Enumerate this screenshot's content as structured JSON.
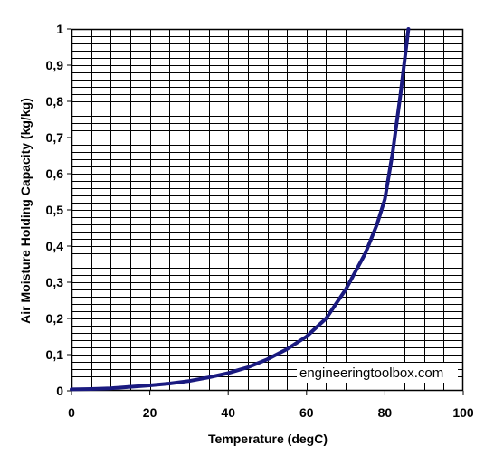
{
  "chart_data": {
    "type": "line",
    "title": "",
    "xlabel": "Temperature (degC)",
    "ylabel": "Air Moisture Holding Capacity (kg/kg)",
    "xlim": [
      0,
      100
    ],
    "ylim": [
      0,
      1
    ],
    "x_ticks": [
      "0",
      "20",
      "40",
      "60",
      "80",
      "100"
    ],
    "y_ticks": [
      "0",
      "0,1",
      "0,2",
      "0,3",
      "0,4",
      "0,5",
      "0,6",
      "0,7",
      "0,8",
      "0,9",
      "1"
    ],
    "grid": true,
    "legend": "none",
    "series": [
      {
        "x": [
          0,
          5,
          10,
          15,
          20,
          25,
          30,
          35,
          40,
          45,
          50,
          55,
          60,
          65,
          70,
          75,
          78,
          80,
          82,
          84,
          86
        ],
        "y": [
          0.004,
          0.005,
          0.007,
          0.011,
          0.015,
          0.02,
          0.027,
          0.037,
          0.049,
          0.065,
          0.087,
          0.115,
          0.15,
          0.2,
          0.28,
          0.38,
          0.46,
          0.53,
          0.66,
          0.82,
          1.0
        ]
      }
    ],
    "annotations": [
      "engineeringtoolbox.com"
    ]
  },
  "colors": {
    "line": "#1a1a80",
    "grid": "#000000",
    "background": "#ffffff"
  }
}
